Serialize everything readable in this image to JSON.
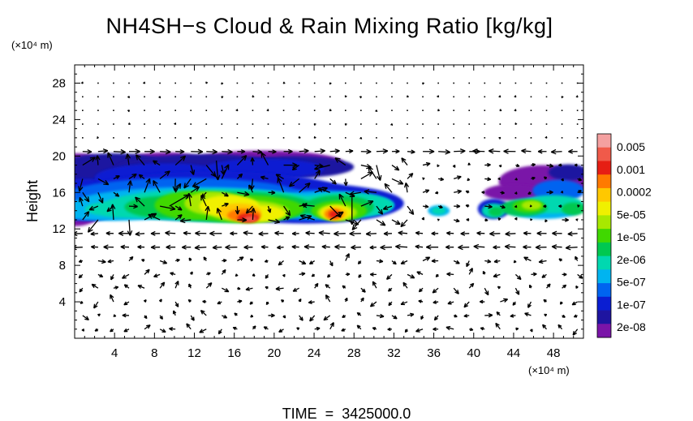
{
  "chart_data": {
    "type": "heatmap",
    "title": "NH4SH−s Cloud & Rain Mixing Ratio [kg/kg]",
    "ylabel": "Height",
    "y_unit": "(×10⁴ m)",
    "x_unit": "(×10⁴ m)",
    "footer": "TIME  =  3425000.0",
    "xlim": [
      0,
      51
    ],
    "ylim": [
      0,
      30
    ],
    "x_ticks": [
      4,
      8,
      12,
      16,
      20,
      24,
      28,
      32,
      36,
      40,
      44,
      48
    ],
    "y_ticks": [
      4,
      8,
      12,
      16,
      20,
      24,
      28
    ],
    "colorbar": {
      "labels": [
        "0.005",
        "0.001",
        "0.0002",
        "5e-05",
        "1e-05",
        "2e-06",
        "5e-07",
        "1e-07",
        "2e-08"
      ],
      "colors": [
        "#f4a0a0",
        "#f05a4a",
        "#e61e14",
        "#ff7a00",
        "#ffc800",
        "#f0f000",
        "#a8e800",
        "#40d800",
        "#00c850",
        "#00d8b0",
        "#00b4f0",
        "#0064f0",
        "#0a1ed2",
        "#1e14a0",
        "#7a14a8"
      ]
    },
    "cloud_regions": [
      {
        "name": "main-envelope",
        "x": [
          0,
          34
        ],
        "y": [
          12.5,
          20.5
        ],
        "level": "2e-08 to 1e-07"
      },
      {
        "name": "core",
        "x": [
          13,
          28
        ],
        "y": [
          12.5,
          17
        ],
        "level": "5e-05 to 0.0002"
      },
      {
        "name": "peak-1",
        "x": [
          16,
          19
        ],
        "y": [
          12.3,
          14
        ],
        "level": "0.001"
      },
      {
        "name": "peak-2",
        "x": [
          26,
          27.5
        ],
        "y": [
          13,
          14.5
        ],
        "level": "0.001"
      },
      {
        "name": "small-patch",
        "x": [
          35.5,
          37.5
        ],
        "y": [
          13.5,
          14.5
        ],
        "level": "2e-06"
      },
      {
        "name": "right-cloud",
        "x": [
          41,
          51
        ],
        "y": [
          13,
          19
        ],
        "level": "2e-08 to 1e-05"
      }
    ],
    "vector_field": "wind arrows on a regular grid; strong circulation in the cloud layer (y 11–20), weak flow elsewhere"
  }
}
